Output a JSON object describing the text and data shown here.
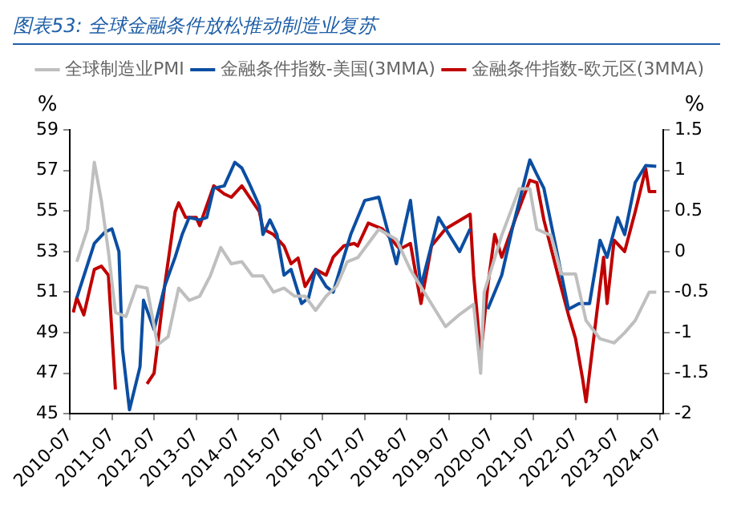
{
  "chart_data": {
    "type": "line",
    "title": "图表53: 全球金融条件放松推动制造业复苏",
    "ylabel": "%",
    "y2label": "%",
    "legend": "top right",
    "marker": "none",
    "line_style": "solid",
    "xlim": [
      "2010-07",
      "2024-08"
    ],
    "xticks": [
      "2010-07",
      "2011-07",
      "2012-07",
      "2013-07",
      "2014-07",
      "2015-07",
      "2016-07",
      "2017-07",
      "2018-07",
      "2019-07",
      "2020-07",
      "2021-07",
      "2022-07",
      "2023-07",
      "2024-07"
    ],
    "ylim": [
      45,
      59
    ],
    "yticks": [
      45,
      47,
      49,
      51,
      53,
      55,
      57,
      59
    ],
    "y2lim": [
      -2,
      1.5
    ],
    "y2ticks": [
      -2,
      -1.5,
      -1,
      -0.5,
      0,
      0.5,
      1,
      1.5
    ],
    "series": [
      {
        "name": "全球制造业PMI",
        "color": "#bfbfbf",
        "x": [
          "2010-09",
          "2010-12",
          "2011-02",
          "2011-04",
          "2011-06",
          "2011-08",
          "2011-11",
          "2012-02",
          "2012-05",
          "2012-08",
          "2012-11",
          "2013-02",
          "2013-05",
          "2013-08",
          "2013-11",
          "2014-02",
          "2014-05",
          "2014-08",
          "2014-11",
          "2015-02",
          "2015-05",
          "2015-08",
          "2015-11",
          "2016-02",
          "2016-05",
          "2016-08",
          "2016-11",
          "2017-02",
          "2017-05",
          "2017-11",
          "2018-04",
          "2018-08",
          "2019-01",
          "2019-06",
          "2019-10",
          "2020-02",
          "2020-04",
          "2020-05",
          "2020-10",
          "2021-03",
          "2021-06",
          "2021-08",
          "2021-12",
          "2022-03",
          "2022-07",
          "2022-10",
          "2023-02",
          "2023-06",
          "2023-09",
          "2023-12",
          "2024-04",
          "2024-06"
        ],
        "values": [
          52.5,
          54.1,
          57.4,
          55.5,
          53,
          50,
          49.8,
          51.3,
          51.2,
          48.4,
          48.8,
          51.2,
          50.6,
          50.8,
          51.8,
          53.2,
          52.4,
          52.5,
          51.8,
          51.8,
          51,
          51.2,
          50.8,
          50.8,
          50.1,
          50.8,
          51.3,
          52.5,
          52.7,
          54.1,
          53.6,
          52.1,
          50.7,
          49.3,
          49.9,
          50.4,
          47,
          51,
          53.8,
          56.1,
          56.1,
          54.1,
          53.8,
          51.9,
          51.9,
          49.6,
          48.7,
          48.5,
          49,
          49.6,
          51,
          51
        ]
      },
      {
        "name": "金融条件指数-美国(3MMA)",
        "color": "#0b4ea2",
        "axis": "y2",
        "x": [
          "2010-09",
          "2011-02",
          "2011-05",
          "2011-07",
          "2011-09",
          "2011-10",
          "2011-12",
          "2012-03",
          "2012-04",
          "2012-07",
          "2012-10",
          "2013-01",
          "2013-03",
          "2013-05",
          "2013-08",
          "2013-10",
          "2013-12",
          "2014-03",
          "2014-06",
          "2014-08",
          "2014-10",
          "2015-01",
          "2015-02",
          "2015-04",
          "2015-06",
          "2015-08",
          "2015-10",
          "2016-01",
          "2016-03",
          "2016-05",
          "2016-08",
          "2016-10",
          "2017-03",
          "2017-05",
          "2017-07",
          "2017-11",
          "2018-04",
          "2018-08",
          "2018-11",
          "2019-04",
          "2019-10",
          "2020-01",
          "2020-03",
          "2020-04",
          "2020-06",
          "2020-10",
          "2021-01",
          "2021-06",
          "2021-08",
          "2021-10",
          "2022-02",
          "2022-05",
          "2022-08",
          "2022-11",
          "2023-02",
          "2023-04",
          "2023-07",
          "2023-09",
          "2023-12",
          "2024-03",
          "2024-06"
        ],
        "values": [
          -0.57,
          0.1,
          0.24,
          0.28,
          0,
          -1.2,
          -1.95,
          -1.42,
          -0.6,
          -0.96,
          -0.43,
          -0.07,
          0.21,
          0.42,
          0.39,
          0.42,
          0.78,
          0.81,
          1.1,
          1.03,
          0.85,
          0.56,
          0.21,
          0.39,
          0.21,
          -0.29,
          -0.22,
          -0.64,
          -0.57,
          -0.22,
          -0.43,
          -0.5,
          0.21,
          0.42,
          0.63,
          0.67,
          -0.15,
          0.63,
          -0.43,
          0.42,
          0,
          0.28,
          null,
          null,
          -0.71,
          -0.29,
          0.28,
          1.13,
          0.95,
          0.78,
          -0.07,
          -0.71,
          -0.64,
          -0.64,
          0.14,
          -0.07,
          0.42,
          0.21,
          0.85,
          1.06,
          1.05
        ]
      },
      {
        "name": "金融条件指数-欧元区(3MMA)",
        "color": "#c00000",
        "axis": "y2",
        "x": [
          "2010-08",
          "2010-09",
          "2010-11",
          "2011-02",
          "2011-04",
          "2011-06",
          "2011-08",
          "2011-10",
          "2012-02",
          "2012-05",
          "2012-07",
          "2012-10",
          "2013-01",
          "2013-02",
          "2013-04",
          "2013-07",
          "2013-08",
          "2013-12",
          "2014-03",
          "2014-05",
          "2014-08",
          "2015-01",
          "2015-02",
          "2015-05",
          "2015-08",
          "2015-10",
          "2015-12",
          "2016-02",
          "2016-05",
          "2016-08",
          "2016-10",
          "2017-01",
          "2017-04",
          "2017-05",
          "2017-08",
          "2017-12",
          "2018-05",
          "2018-08",
          "2018-11",
          "2019-02",
          "2019-06",
          "2020-01",
          "2020-02",
          "2020-04",
          "2020-06",
          "2020-08",
          "2020-10",
          "2021-02",
          "2021-06",
          "2021-08",
          "2021-10",
          "2022-02",
          "2022-05",
          "2022-07",
          "2022-09",
          "2022-10",
          "2023-01",
          "2023-03",
          "2023-04",
          "2023-06",
          "2023-09",
          "2023-12",
          "2024-03",
          "2024-04",
          "2024-06"
        ],
        "values": [
          -0.75,
          -0.57,
          -0.78,
          -0.22,
          -0.18,
          -0.29,
          -1.7,
          null,
          null,
          -1.63,
          -1.5,
          -0.43,
          0.49,
          0.6,
          0.42,
          0.42,
          0.32,
          0.81,
          0.71,
          0.67,
          0.81,
          0.49,
          0.28,
          0.21,
          0.07,
          -0.15,
          -0.08,
          -0.43,
          -0.22,
          -0.29,
          -0.07,
          0.07,
          0.1,
          0.07,
          0.35,
          0.28,
          0.03,
          0.1,
          -0.64,
          0.07,
          0.28,
          0.46,
          -0.29,
          -1.28,
          -0.43,
          0.21,
          -0.07,
          0.42,
          0.88,
          0.85,
          0.39,
          -0.29,
          -0.78,
          -1.07,
          -1.56,
          -1.85,
          -0.78,
          -0.07,
          -0.64,
          0.14,
          0,
          0.49,
          1.02,
          0.74,
          0.74
        ]
      }
    ]
  }
}
